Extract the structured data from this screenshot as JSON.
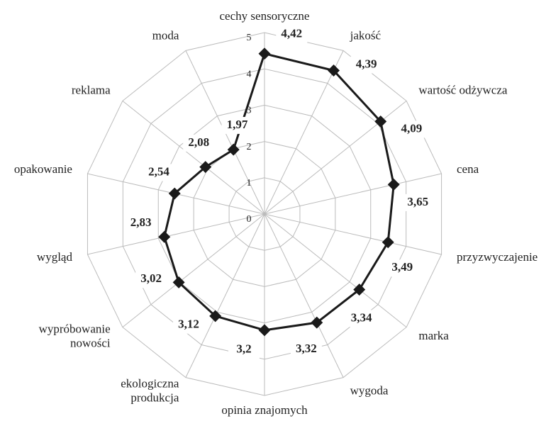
{
  "chart_data": {
    "type": "radar",
    "categories": [
      "cechy sensoryczne",
      "jakość",
      "wartość odżywcza",
      "cena",
      "przyzwyczajenie",
      "marka",
      "wygoda",
      "opinia znajomych",
      "ekologiczna\nprodukcja",
      "wypróbowanie\nnowości",
      "wygląd",
      "opakowanie",
      "reklama",
      "moda"
    ],
    "values": [
      4.42,
      4.39,
      4.09,
      3.65,
      3.49,
      3.34,
      3.32,
      3.2,
      3.12,
      3.02,
      2.83,
      2.54,
      2.08,
      1.97
    ],
    "value_labels": [
      "4,42",
      "4,39",
      "4,09",
      "3,65",
      "3,49",
      "3,34",
      "3,32",
      "3,2",
      "3,12",
      "3,02",
      "2,83",
      "2,54",
      "2,08",
      "1,97"
    ],
    "color": "#1a1a1a",
    "ylim": [
      0,
      5
    ],
    "yticks": [
      0,
      1,
      2,
      3,
      4,
      5
    ],
    "grid": true
  }
}
